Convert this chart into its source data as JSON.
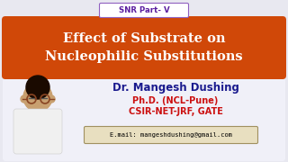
{
  "bg_color": "#e8e8f0",
  "title_bar_color": "#d04808",
  "title_text": "Effect of Substrate on\nNucleophilic Substitutions",
  "title_color": "#ffffff",
  "snr_text": "SNR Part- V",
  "snr_color": "#5b1fa0",
  "snr_bg": "#ffffff",
  "snr_border": "#9060c0",
  "name_text": "Dr. Mangesh Dushing",
  "name_color": "#1a1a8e",
  "phd_text": "Ph.D. (NCL-Pune)",
  "phd_color": "#cc1010",
  "csir_text": "CSIR-NET-JRF, GATE",
  "csir_color": "#cc1010",
  "email_text": "E.mail: mangeshdushing@gmail.com",
  "email_color": "#000000",
  "email_bg": "#e8dfc0",
  "email_border": "#a09060",
  "bottom_bg": "#f0f0f8",
  "stripe_color": "#d8d8e8",
  "outer_border": "#c0c0d0",
  "photo_skin": "#c8a070",
  "photo_hair": "#1a0a00",
  "photo_shirt": "#f0f0f0",
  "photo_bg": "#e0e0e8"
}
